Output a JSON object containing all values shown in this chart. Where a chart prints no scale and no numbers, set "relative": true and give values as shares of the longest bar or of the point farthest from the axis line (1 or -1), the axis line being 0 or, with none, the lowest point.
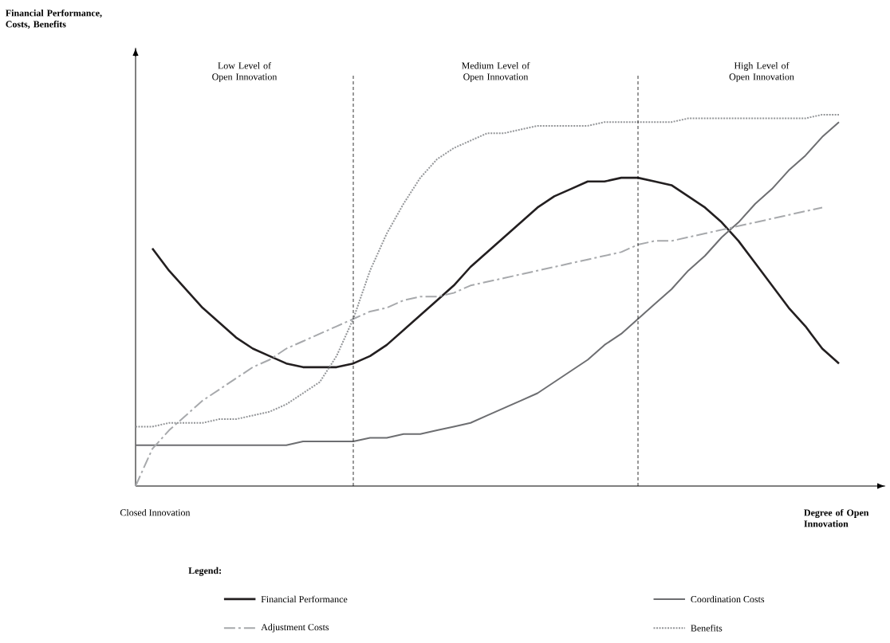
{
  "chart_data": {
    "type": "line",
    "relative": true,
    "xlabel": "Degree of Open Innovation",
    "legend_title": "Legend:",
    "legend": "bottom",
    "categories": [
      null,
      null,
      null,
      null,
      null,
      null,
      null,
      null,
      null,
      null,
      null,
      null,
      null,
      null,
      null,
      null,
      null,
      null,
      null,
      null,
      null,
      null,
      null,
      null,
      null,
      null,
      null,
      null,
      null,
      null,
      null,
      null,
      null,
      null,
      null,
      null,
      null,
      null,
      null,
      null,
      null,
      null,
      null
    ],
    "annotations": [
      "Low Level of Open Innovation",
      "Medium Level of Open Innovation",
      "High Level of Open Innovation",
      "Closed Innovation",
      "Financial Performance, Costs, Benefits"
    ],
    "series": [
      {
        "name": "Financial Performance",
        "color": "#231f20",
        "line_style": "solid",
        "values": [
          null,
          0.64,
          0.58,
          0.53,
          0.48,
          0.44,
          0.4,
          0.37,
          0.35,
          0.33,
          0.32,
          0.32,
          0.32,
          0.33,
          0.35,
          0.38,
          0.42,
          0.46,
          0.5,
          0.54,
          0.59,
          0.63,
          0.67,
          0.71,
          0.75,
          0.78,
          0.8,
          0.82,
          0.82,
          0.83,
          0.83,
          0.82,
          0.81,
          0.78,
          0.75,
          0.71,
          0.66,
          0.6,
          0.54,
          0.48,
          0.43,
          0.37,
          0.33
        ]
      },
      {
        "name": "Coordination Costs",
        "color": "#6d6e71",
        "line_style": "solid",
        "values": [
          0.11,
          0.11,
          0.11,
          0.11,
          0.11,
          0.11,
          0.11,
          0.11,
          0.11,
          0.11,
          0.12,
          0.12,
          0.12,
          0.12,
          0.13,
          0.13,
          0.14,
          0.14,
          0.15,
          0.16,
          0.17,
          0.19,
          0.21,
          0.23,
          0.25,
          0.28,
          0.31,
          0.34,
          0.38,
          0.41,
          0.45,
          0.49,
          0.53,
          0.58,
          0.62,
          0.67,
          0.71,
          0.76,
          0.8,
          0.85,
          0.89,
          0.94,
          0.98
        ]
      },
      {
        "name": "Adjustment Costs",
        "color": "#a7a9ac",
        "line_style": "dashdot",
        "values": [
          0.0,
          0.1,
          0.15,
          0.19,
          0.23,
          0.26,
          0.29,
          0.32,
          0.34,
          0.37,
          0.39,
          0.41,
          0.43,
          0.45,
          0.47,
          0.48,
          0.5,
          0.51,
          0.51,
          0.52,
          0.54,
          0.55,
          0.56,
          0.57,
          0.58,
          0.59,
          0.6,
          0.61,
          0.62,
          0.63,
          0.65,
          0.66,
          0.66,
          0.67,
          0.68,
          0.69,
          0.7,
          0.71,
          0.72,
          0.73,
          0.74,
          0.75,
          null
        ]
      },
      {
        "name": "Benefits",
        "color": "#939598",
        "line_style": "dotted",
        "values": [
          0.16,
          0.16,
          0.17,
          0.17,
          0.17,
          0.18,
          0.18,
          0.19,
          0.2,
          0.22,
          0.25,
          0.28,
          0.35,
          0.45,
          0.58,
          0.68,
          0.76,
          0.83,
          0.88,
          0.91,
          0.93,
          0.95,
          0.95,
          0.96,
          0.97,
          0.97,
          0.97,
          0.97,
          0.98,
          0.98,
          0.98,
          0.98,
          0.98,
          0.99,
          0.99,
          0.99,
          0.99,
          0.99,
          0.99,
          0.99,
          0.99,
          1.0,
          1.0
        ]
      }
    ]
  }
}
